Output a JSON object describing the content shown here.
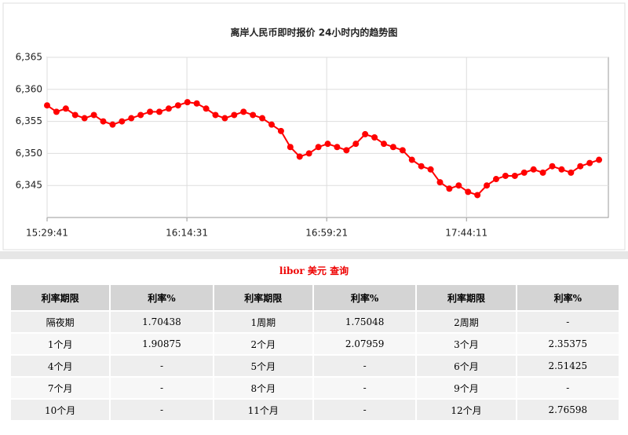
{
  "chart_data": {
    "type": "line",
    "title": "离岸人民币即时报价 24小时内的趋势图",
    "x": [
      "15:29:41",
      "15:32:41",
      "15:35:41",
      "15:38:41",
      "15:41:41",
      "15:44:41",
      "15:47:41",
      "15:50:41",
      "15:53:41",
      "15:56:41",
      "15:59:41",
      "16:02:41",
      "16:05:41",
      "16:08:41",
      "16:11:41",
      "16:14:41",
      "16:17:41",
      "16:20:41",
      "16:23:41",
      "16:26:41",
      "16:29:41",
      "16:32:41",
      "16:35:41",
      "16:38:41",
      "16:41:41",
      "16:44:41",
      "16:47:41",
      "16:50:41",
      "16:53:41",
      "16:56:41",
      "16:59:41",
      "17:02:41",
      "17:05:41",
      "17:08:41",
      "17:11:41",
      "17:14:41",
      "17:17:41",
      "17:20:41",
      "17:23:41",
      "17:26:41",
      "17:29:41",
      "17:32:41",
      "17:35:41",
      "17:38:41",
      "17:41:41",
      "17:44:41",
      "17:47:41",
      "17:50:41",
      "17:53:41",
      "17:56:41",
      "17:59:41",
      "18:02:41",
      "18:05:41",
      "18:08:41",
      "18:11:41",
      "18:14:41",
      "18:17:41",
      "18:20:41",
      "18:23:41",
      "18:26:41"
    ],
    "series": [
      {
        "color": "#ff0000",
        "values": [
          6.3575,
          6.3565,
          6.357,
          6.356,
          6.3555,
          6.356,
          6.355,
          6.3545,
          6.355,
          6.3555,
          6.356,
          6.3565,
          6.3565,
          6.357,
          6.3575,
          6.358,
          6.3578,
          6.357,
          6.356,
          6.3555,
          6.356,
          6.3565,
          6.356,
          6.3555,
          6.3545,
          6.3535,
          6.351,
          6.3495,
          6.35,
          6.351,
          6.3515,
          6.351,
          6.3505,
          6.3515,
          6.353,
          6.3525,
          6.3515,
          6.351,
          6.3505,
          6.349,
          6.348,
          6.3475,
          6.3455,
          6.3445,
          6.345,
          6.344,
          6.3435,
          6.345,
          6.346,
          6.3465,
          6.3465,
          6.347,
          6.3475,
          6.347,
          6.348,
          6.3475,
          6.347,
          6.348,
          6.3485,
          6.349
        ]
      }
    ],
    "xlim": [
      "15:29:41",
      "18:29:41"
    ],
    "xticks": [
      "15:29:41",
      "16:14:31",
      "16:59:21",
      "17:44:11"
    ],
    "ylim": [
      6.34,
      6.365
    ],
    "yticks": [
      {
        "value": 6.345,
        "label": "6,345"
      },
      {
        "value": 6.35,
        "label": "6,350"
      },
      {
        "value": 6.355,
        "label": "6,355"
      },
      {
        "value": 6.36,
        "label": "6,360"
      },
      {
        "value": 6.365,
        "label": "6,365"
      }
    ],
    "grid": true
  },
  "table": {
    "title": "libor 美元 查询",
    "header": [
      "利率期限",
      "利率%",
      "利率期限",
      "利率%",
      "利率期限",
      "利率%"
    ],
    "rows": [
      [
        "隔夜期",
        "1.70438",
        "1周期",
        "1.75048",
        "2周期",
        "-"
      ],
      [
        "1个月",
        "1.90875",
        "2个月",
        "2.07959",
        "3个月",
        "2.35375"
      ],
      [
        "4个月",
        "-",
        "5个月",
        "-",
        "6个月",
        "2.51425"
      ],
      [
        "7个月",
        "-",
        "8个月",
        "-",
        "9个月",
        "-"
      ],
      [
        "10个月",
        "-",
        "11个月",
        "-",
        "12个月",
        "2.76598"
      ]
    ]
  }
}
